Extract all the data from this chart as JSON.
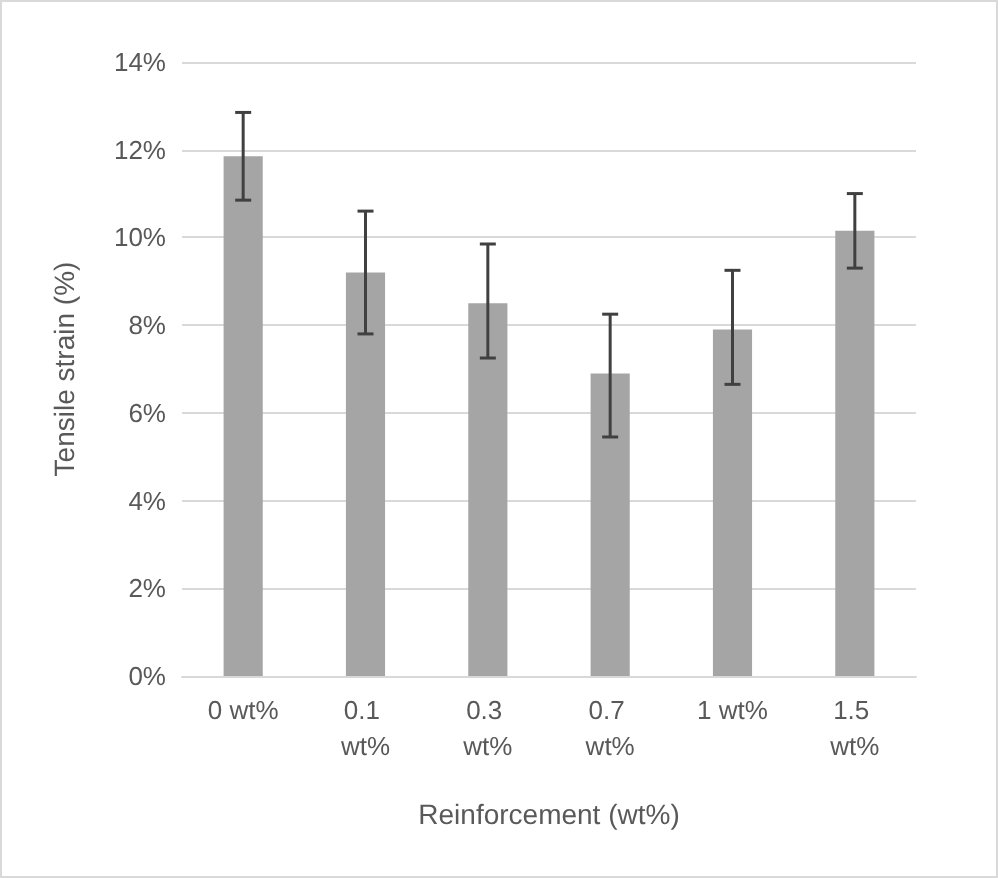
{
  "chart_data": {
    "type": "bar",
    "xlabel": "Reinforcement (wt%)",
    "ylabel": "Tensile strain (%)",
    "categories": [
      "0 wt%",
      "0.1 wt%",
      "0.3 wt%",
      "0.7 wt%",
      "1 wt%",
      "1.5 wt%"
    ],
    "series": [
      {
        "color": "#a5a5a5",
        "values": [
          11.85,
          9.2,
          8.5,
          6.9,
          7.9,
          10.15
        ],
        "errors": [
          [
            10.85,
            12.85
          ],
          [
            7.8,
            10.6
          ],
          [
            7.25,
            9.85
          ],
          [
            5.45,
            8.25
          ],
          [
            6.65,
            9.25
          ],
          [
            9.3,
            11.0
          ]
        ]
      }
    ],
    "ylim": [
      0,
      14
    ],
    "yticks": [
      {
        "value": 0,
        "label": "0%"
      },
      {
        "value": 2,
        "label": "2%"
      },
      {
        "value": 4,
        "label": "4%"
      },
      {
        "value": 6,
        "label": "6%"
      },
      {
        "value": 8,
        "label": "8%"
      },
      {
        "value": 10,
        "label": "10%"
      },
      {
        "value": 12,
        "label": "12%"
      },
      {
        "value": 14,
        "label": "14%"
      }
    ],
    "grid": "y"
  }
}
